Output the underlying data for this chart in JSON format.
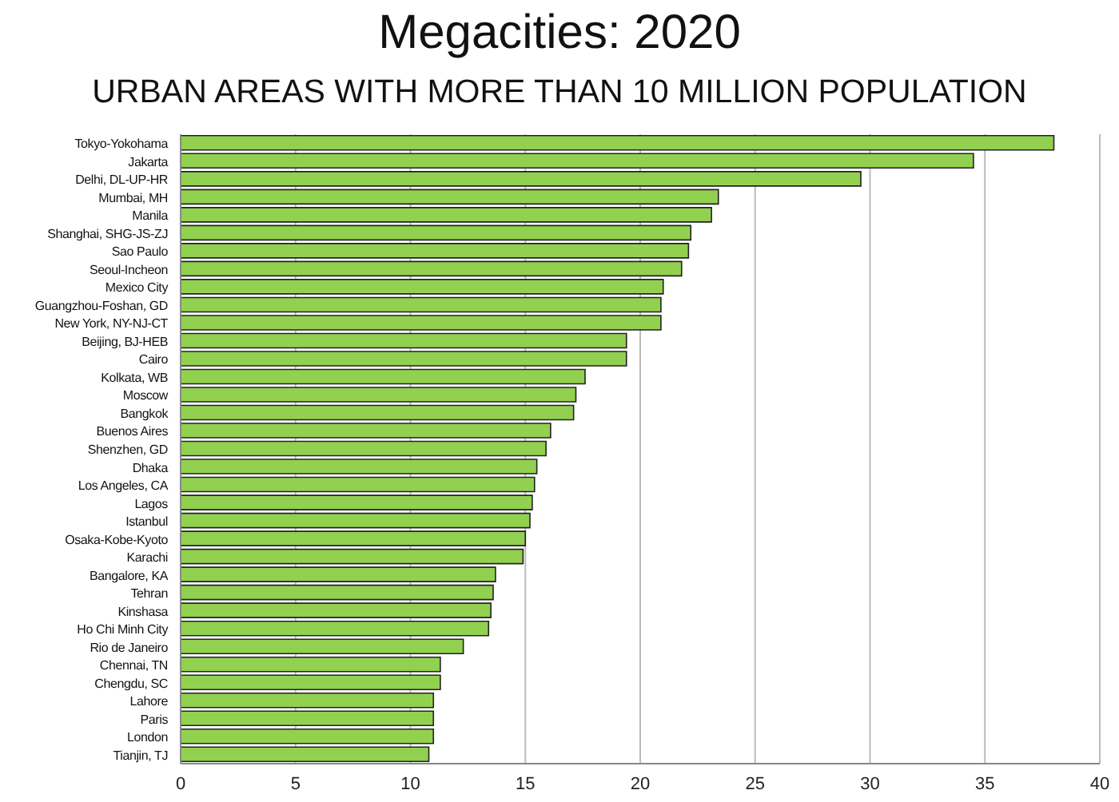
{
  "chart_data": {
    "type": "bar",
    "orientation": "horizontal",
    "title": "Megacities: 2020",
    "subtitle": "URBAN AREAS WITH MORE THAN 10 MILLION POPULATION",
    "categories": [
      "Tokyo-Yokohama",
      "Jakarta",
      "Delhi, DL-UP-HR",
      "Mumbai, MH",
      "Manila",
      "Shanghai, SHG-JS-ZJ",
      "Sao Paulo",
      "Seoul-Incheon",
      "Mexico City",
      "Guangzhou-Foshan, GD",
      "New York, NY-NJ-CT",
      "Beijing, BJ-HEB",
      "Cairo",
      "Kolkata, WB",
      "Moscow",
      "Bangkok",
      "Buenos Aires",
      "Shenzhen, GD",
      "Dhaka",
      "Los Angeles, CA",
      "Lagos",
      "Istanbul",
      "Osaka-Kobe-Kyoto",
      "Karachi",
      "Bangalore, KA",
      "Tehran",
      "Kinshasa",
      "Ho Chi Minh City",
      "Rio de Janeiro",
      "Chennai, TN",
      "Chengdu, SC",
      "Lahore",
      "Paris",
      "London",
      "Tianjin, TJ"
    ],
    "values": [
      38.0,
      34.5,
      29.6,
      23.4,
      23.1,
      22.2,
      22.1,
      21.8,
      21.0,
      20.9,
      20.9,
      19.4,
      19.4,
      17.6,
      17.2,
      17.1,
      16.1,
      15.9,
      15.5,
      15.4,
      15.3,
      15.2,
      15.0,
      14.9,
      13.7,
      13.6,
      13.5,
      13.4,
      12.3,
      11.3,
      11.3,
      11.0,
      11.0,
      11.0,
      10.8
    ],
    "color": "#92d050",
    "xlim": [
      0,
      40
    ],
    "xticks": [
      0,
      5,
      10,
      15,
      20,
      25,
      30,
      35,
      40
    ],
    "grid": "x",
    "legend": false
  }
}
